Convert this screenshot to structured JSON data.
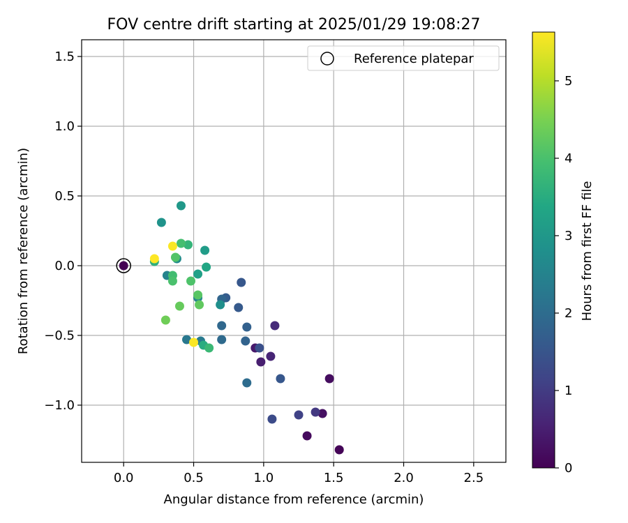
{
  "chart_data": {
    "type": "scatter",
    "title": "FOV centre drift starting at 2025/01/29 19:08:27",
    "xlabel": "Angular distance from reference (arcmin)",
    "ylabel": "Rotation from reference (arcmin)",
    "xlim": [
      -0.3,
      2.73
    ],
    "ylim": [
      -1.41,
      1.62
    ],
    "xticks": [
      0.0,
      0.5,
      1.0,
      1.5,
      2.0,
      2.5
    ],
    "xtick_labels": [
      "0.0",
      "0.5",
      "1.0",
      "1.5",
      "2.0",
      "2.5"
    ],
    "yticks": [
      -1.0,
      -0.5,
      0.0,
      0.5,
      1.0,
      1.5
    ],
    "ytick_labels": [
      "−1.0",
      "−0.5",
      "0.0",
      "0.5",
      "1.0",
      "1.5"
    ],
    "grid": true,
    "legend": {
      "placement": "top-right",
      "entries": [
        "Reference platepar"
      ]
    },
    "reference_point": {
      "x": 0.0,
      "y": 0.0,
      "label": "Reference platepar"
    },
    "colorbar": {
      "label": "Hours from first FF file",
      "colormap": "viridis",
      "range": [
        0,
        5.63
      ],
      "ticks": [
        0,
        1,
        2,
        3,
        4,
        5
      ],
      "tick_labels": [
        "0",
        "1",
        "2",
        "3",
        "4",
        "5"
      ]
    },
    "points": [
      {
        "x": 0.0,
        "y": 0.0,
        "h": 0.0
      },
      {
        "x": 1.54,
        "y": -1.32,
        "h": 0.05
      },
      {
        "x": 1.31,
        "y": -1.22,
        "h": 0.15
      },
      {
        "x": 1.47,
        "y": -0.81,
        "h": 0.2
      },
      {
        "x": 1.42,
        "y": -1.06,
        "h": 0.25
      },
      {
        "x": 0.94,
        "y": -0.59,
        "h": 0.4
      },
      {
        "x": 0.98,
        "y": -0.69,
        "h": 0.5
      },
      {
        "x": 1.05,
        "y": -0.65,
        "h": 0.6
      },
      {
        "x": 1.08,
        "y": -0.43,
        "h": 0.7
      },
      {
        "x": 1.37,
        "y": -1.05,
        "h": 0.95
      },
      {
        "x": 1.25,
        "y": -1.07,
        "h": 1.1
      },
      {
        "x": 1.06,
        "y": -1.1,
        "h": 1.3
      },
      {
        "x": 0.97,
        "y": -0.59,
        "h": 1.4
      },
      {
        "x": 1.12,
        "y": -0.81,
        "h": 1.55
      },
      {
        "x": 0.84,
        "y": -0.12,
        "h": 1.55
      },
      {
        "x": 0.82,
        "y": -0.3,
        "h": 1.6
      },
      {
        "x": 0.73,
        "y": -0.23,
        "h": 1.65
      },
      {
        "x": 0.88,
        "y": -0.44,
        "h": 1.75
      },
      {
        "x": 0.87,
        "y": -0.54,
        "h": 1.8
      },
      {
        "x": 0.7,
        "y": -0.24,
        "h": 1.85
      },
      {
        "x": 0.7,
        "y": -0.43,
        "h": 1.9
      },
      {
        "x": 0.7,
        "y": -0.53,
        "h": 1.95
      },
      {
        "x": 0.88,
        "y": -0.84,
        "h": 2.0
      },
      {
        "x": 0.45,
        "y": -0.53,
        "h": 2.25
      },
      {
        "x": 0.55,
        "y": -0.54,
        "h": 2.3
      },
      {
        "x": 0.31,
        "y": -0.07,
        "h": 2.5
      },
      {
        "x": 0.53,
        "y": -0.23,
        "h": 2.55
      },
      {
        "x": 0.38,
        "y": 0.05,
        "h": 2.7
      },
      {
        "x": 0.69,
        "y": -0.28,
        "h": 2.8
      },
      {
        "x": 0.27,
        "y": 0.31,
        "h": 2.9
      },
      {
        "x": 0.41,
        "y": 0.43,
        "h": 3.0
      },
      {
        "x": 0.58,
        "y": 0.11,
        "h": 3.1
      },
      {
        "x": 0.53,
        "y": -0.06,
        "h": 3.2
      },
      {
        "x": 0.59,
        "y": -0.01,
        "h": 3.35
      },
      {
        "x": 0.57,
        "y": -0.57,
        "h": 3.5
      },
      {
        "x": 0.22,
        "y": 0.03,
        "h": 3.6
      },
      {
        "x": 0.46,
        "y": 0.15,
        "h": 3.7
      },
      {
        "x": 0.61,
        "y": -0.59,
        "h": 3.8
      },
      {
        "x": 0.35,
        "y": -0.07,
        "h": 3.9
      },
      {
        "x": 0.41,
        "y": 0.16,
        "h": 3.95
      },
      {
        "x": 0.35,
        "y": -0.11,
        "h": 4.0
      },
      {
        "x": 0.48,
        "y": -0.11,
        "h": 4.05
      },
      {
        "x": 0.37,
        "y": 0.06,
        "h": 4.1
      },
      {
        "x": 0.53,
        "y": -0.21,
        "h": 4.15
      },
      {
        "x": 0.54,
        "y": -0.28,
        "h": 4.25
      },
      {
        "x": 0.4,
        "y": -0.29,
        "h": 4.3
      },
      {
        "x": 0.3,
        "y": -0.39,
        "h": 4.4
      },
      {
        "x": 0.5,
        "y": -0.55,
        "h": 5.6
      },
      {
        "x": 0.35,
        "y": 0.14,
        "h": 5.6
      },
      {
        "x": 0.22,
        "y": 0.05,
        "h": 5.63
      }
    ]
  }
}
